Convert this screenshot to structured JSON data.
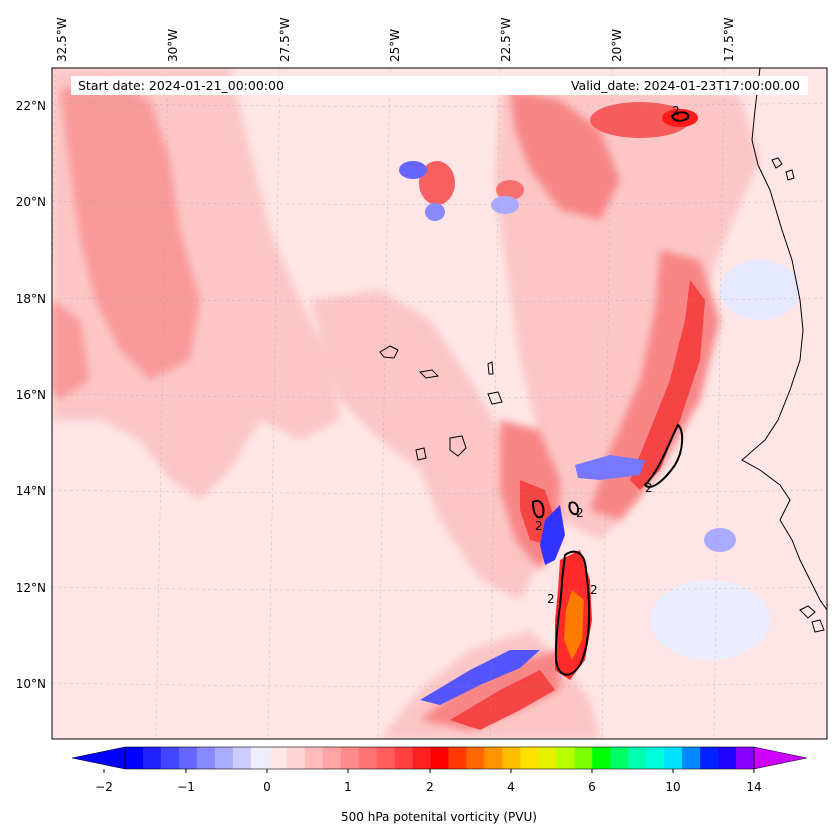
{
  "header": {
    "start_date": "Start date: 2024-01-21_00:00:00",
    "valid_date": "Valid_date: 2024-01-23T17:00:00.00"
  },
  "map": {
    "lon_labels": [
      "32.5°W",
      "30°W",
      "27.5°W",
      "25°W",
      "22.5°W",
      "20°W",
      "17.5°W"
    ],
    "lat_labels": [
      "22°N",
      "20°N",
      "18°N",
      "16°N",
      "14°N",
      "12°N",
      "10°N"
    ],
    "contour_labels": [
      "2",
      "2",
      "2",
      "2",
      "2",
      "2"
    ],
    "field_colors": {
      "very_light_red": "#fee4e4",
      "light_red": "#fcc0c0",
      "medium_red": "#f98a8a",
      "strong_red": "#f66a6a",
      "red": "#ff2020",
      "orange": "#ff7700",
      "light_blue": "#e8eaff",
      "blue": "#8a8aff",
      "deep_blue": "#2525ff"
    }
  },
  "colorbar": {
    "colors": [
      "#0000ff",
      "#2222ff",
      "#4444ff",
      "#6666ff",
      "#8888ff",
      "#aaaaff",
      "#ccccff",
      "#eeeeff",
      "#ffe8e8",
      "#ffd4d4",
      "#ffbcbc",
      "#ffa4a4",
      "#ff8c8c",
      "#ff7474",
      "#ff5c5c",
      "#ff4040",
      "#ff2020",
      "#ff0000",
      "#ff3a00",
      "#ff6a00",
      "#ff9300",
      "#ffbb00",
      "#ffe000",
      "#e6f000",
      "#b8ff00",
      "#7cff00",
      "#00ff00",
      "#00ff66",
      "#00ffb0",
      "#00ffdd",
      "#00e0ff",
      "#0088ff",
      "#0022ff",
      "#2200ff",
      "#8800ff"
    ],
    "extend_low_color": "#0000ff",
    "extend_high_color": "#cc00ff",
    "ticks": [
      "−2",
      "−1",
      "0",
      "1",
      "2",
      "4",
      "6",
      "10",
      "14"
    ],
    "label": "500 hPa potenital vorticity (PVU)"
  }
}
